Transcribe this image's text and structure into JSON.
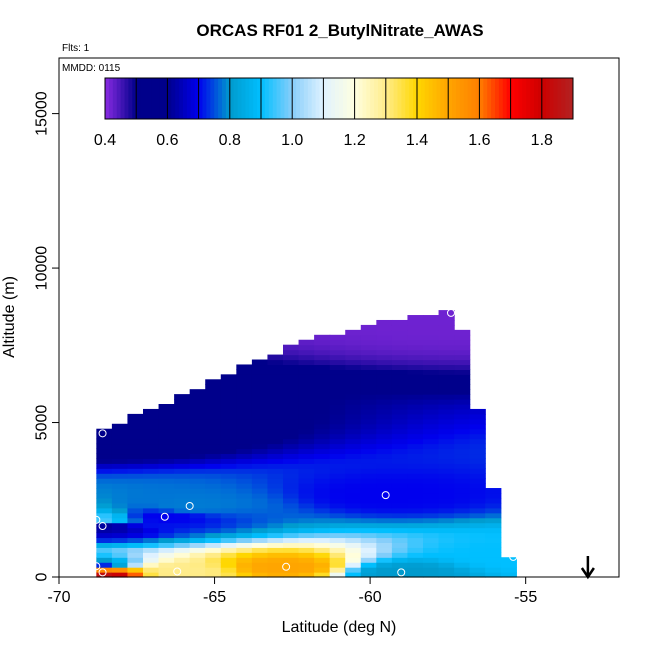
{
  "chart_data": {
    "type": "heatmap",
    "title": "ORCAS RF01 2_ButylNitrate_AWAS",
    "flights_label": "Flts: 1",
    "date_label": "MMDD: 0115",
    "xlabel": "Latitude (deg N)",
    "ylabel": "Altitude (m)",
    "xlim": [
      -70,
      -52
    ],
    "ylim": [
      0,
      16800
    ],
    "x_ticks": [
      -70,
      -65,
      -60,
      -55
    ],
    "x_tick_labels": [
      "-70",
      "-65",
      "-60",
      "-55"
    ],
    "y_ticks": [
      0,
      5000,
      10000,
      15000
    ],
    "y_tick_labels": [
      "0",
      "5000",
      "10000",
      "15000"
    ],
    "colorbar": {
      "range": [
        0.4,
        1.9
      ],
      "ticks": [
        0.4,
        0.6,
        0.8,
        1.0,
        1.2,
        1.4,
        1.6,
        1.8
      ],
      "tick_labels": [
        "0.4",
        "0.6",
        "0.8",
        "1.0",
        "1.2",
        "1.4",
        "1.6",
        "1.8"
      ],
      "stops": [
        {
          "v": 0.4,
          "c": "#8a2be2"
        },
        {
          "v": 0.5,
          "c": "#00008b"
        },
        {
          "v": 0.6,
          "c": "#00008b"
        },
        {
          "v": 0.7,
          "c": "#0000ee"
        },
        {
          "v": 0.8,
          "c": "#009acd"
        },
        {
          "v": 0.9,
          "c": "#00bfff"
        },
        {
          "v": 1.0,
          "c": "#87cefa"
        },
        {
          "v": 1.1,
          "c": "#e0f2ff"
        },
        {
          "v": 1.2,
          "c": "#ffffe0"
        },
        {
          "v": 1.3,
          "c": "#ffec8b"
        },
        {
          "v": 1.4,
          "c": "#ffd700"
        },
        {
          "v": 1.5,
          "c": "#ffa500"
        },
        {
          "v": 1.6,
          "c": "#ff7f00"
        },
        {
          "v": 1.7,
          "c": "#ff0000"
        },
        {
          "v": 1.8,
          "c": "#cd0000"
        },
        {
          "v": 1.9,
          "c": "#b22222"
        }
      ]
    },
    "samples": [
      {
        "lat": -68.6,
        "alt": 4650,
        "value": 0.55
      },
      {
        "lat": -68.6,
        "alt": 1650,
        "value": 0.62
      },
      {
        "lat": -68.8,
        "alt": 1850,
        "value": 0.95
      },
      {
        "lat": -68.8,
        "alt": 350,
        "value": 0.72
      },
      {
        "lat": -68.6,
        "alt": 150,
        "value": 1.85
      },
      {
        "lat": -66.6,
        "alt": 1950,
        "value": 0.7
      },
      {
        "lat": -65.8,
        "alt": 2300,
        "value": 0.78
      },
      {
        "lat": -66.2,
        "alt": 180,
        "value": 1.3
      },
      {
        "lat": -62.7,
        "alt": 330,
        "value": 1.5
      },
      {
        "lat": -59.5,
        "alt": 2650,
        "value": 0.7
      },
      {
        "lat": -59.0,
        "alt": 150,
        "value": 0.8
      },
      {
        "lat": -57.4,
        "alt": 8550,
        "value": 0.42
      },
      {
        "lat": -55.4,
        "alt": 650,
        "value": 0.9
      }
    ],
    "flight_direction": "down",
    "flight_direction_lat": -53.0
  }
}
